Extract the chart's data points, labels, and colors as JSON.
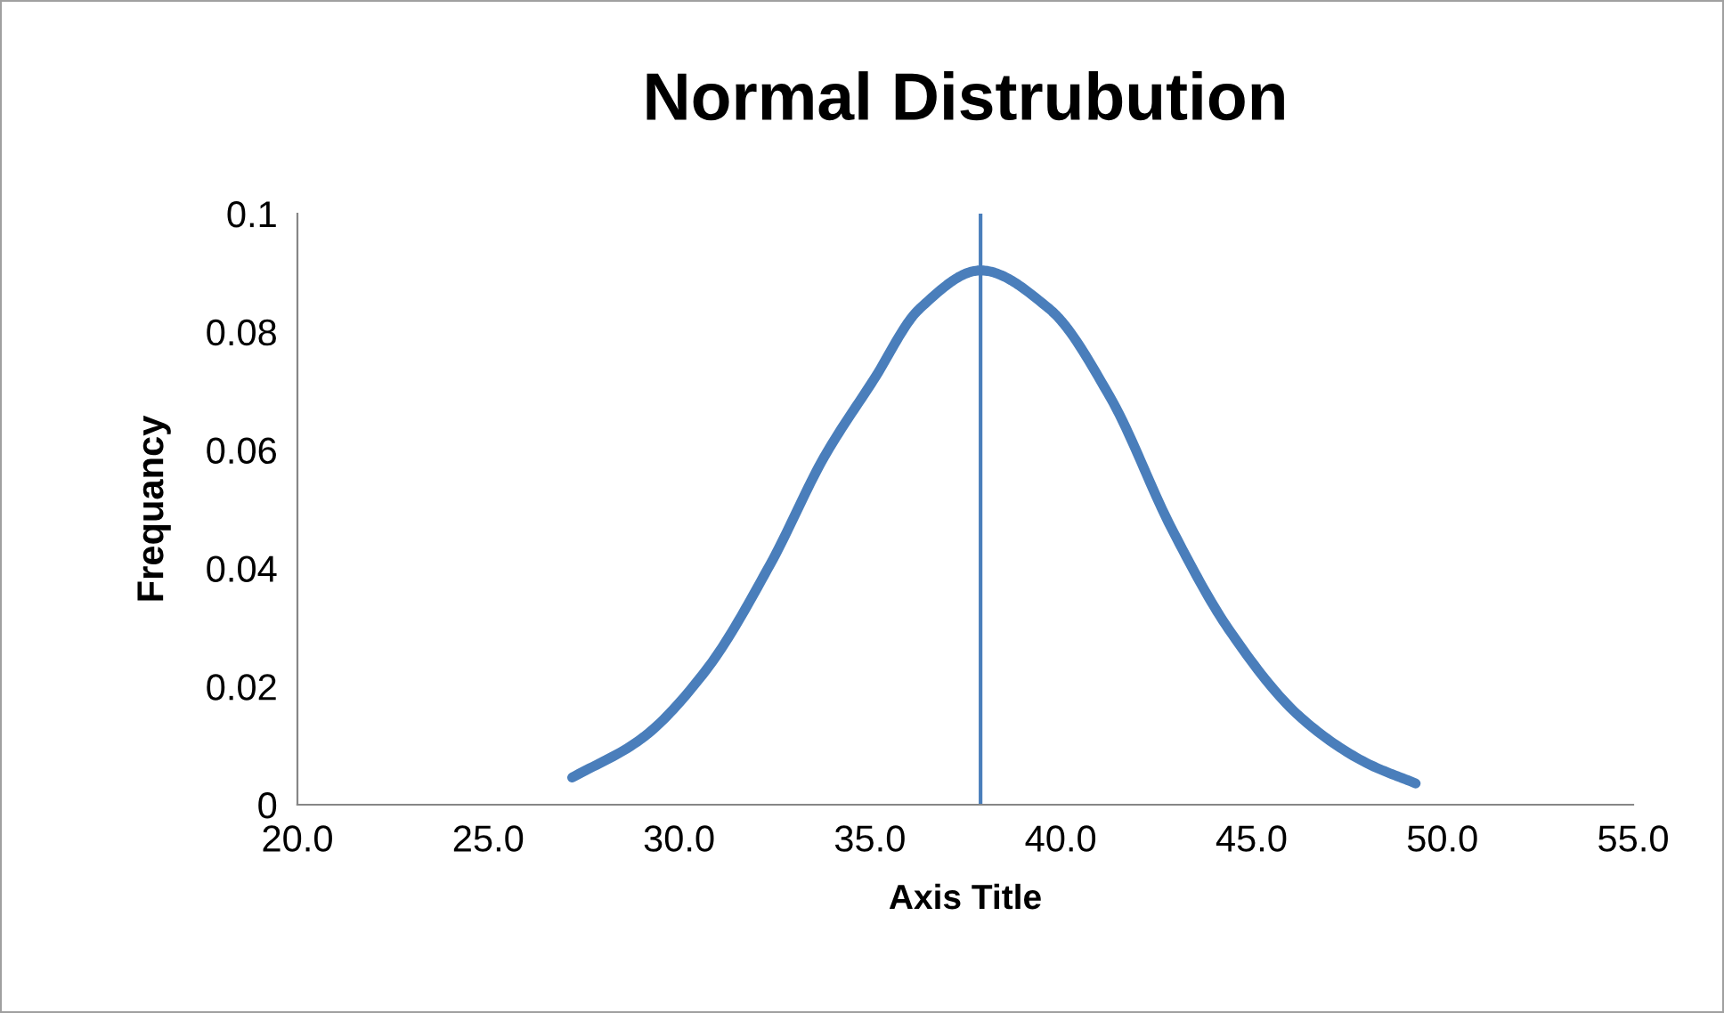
{
  "chart_data": {
    "type": "line",
    "title": "Normal Distrubution",
    "xlabel": "Axis Title",
    "ylabel": "Frequancy",
    "series": [
      {
        "color": "#4a7ebb",
        "x": [
          27.2,
          29.0,
          30.7,
          32.4,
          33.8,
          35.1,
          36.3,
          37.9,
          39.7,
          41.3,
          42.9,
          44.4,
          46.3,
          48.0,
          49.3
        ],
        "values": [
          0.0046,
          0.0111,
          0.0227,
          0.0408,
          0.0588,
          0.0719,
          0.0839,
          0.0904,
          0.0839,
          0.0689,
          0.0468,
          0.0297,
          0.0147,
          0.0071,
          0.0036
        ]
      }
    ],
    "xlim": [
      20,
      55
    ],
    "xticks": [
      {
        "value": 20,
        "label": "20.0"
      },
      {
        "value": 25,
        "label": "25.0"
      },
      {
        "value": 30,
        "label": "30.0"
      },
      {
        "value": 35,
        "label": "35.0"
      },
      {
        "value": 40,
        "label": "40.0"
      },
      {
        "value": 45,
        "label": "45.0"
      },
      {
        "value": 50,
        "label": "50.0"
      },
      {
        "value": 55,
        "label": "55.0"
      }
    ],
    "ylim": [
      0,
      0.1
    ],
    "yticks": [
      0,
      0.02,
      0.04,
      0.06,
      0.08,
      0.1
    ],
    "ref_lines": [
      {
        "axis": "x",
        "value": 37.9,
        "color": "#4a7ebb"
      }
    ],
    "grid": false,
    "marker": "none",
    "line_style": "solid"
  }
}
